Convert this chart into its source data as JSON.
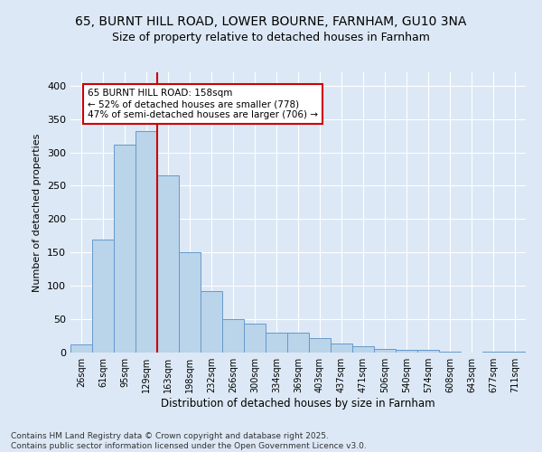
{
  "title_line1": "65, BURNT HILL ROAD, LOWER BOURNE, FARNHAM, GU10 3NA",
  "title_line2": "Size of property relative to detached houses in Farnham",
  "xlabel": "Distribution of detached houses by size in Farnham",
  "ylabel": "Number of detached properties",
  "categories": [
    "26sqm",
    "61sqm",
    "95sqm",
    "129sqm",
    "163sqm",
    "198sqm",
    "232sqm",
    "266sqm",
    "300sqm",
    "334sqm",
    "369sqm",
    "403sqm",
    "437sqm",
    "471sqm",
    "506sqm",
    "540sqm",
    "574sqm",
    "608sqm",
    "643sqm",
    "677sqm",
    "711sqm"
  ],
  "values": [
    12,
    170,
    311,
    332,
    265,
    150,
    92,
    50,
    44,
    30,
    30,
    22,
    13,
    10,
    5,
    4,
    4,
    1,
    0,
    1,
    2
  ],
  "bar_color": "#bad4ea",
  "bar_edge_color": "#6699cc",
  "vline_x": 3.5,
  "vline_color": "#cc0000",
  "annotation_text": "65 BURNT HILL ROAD: 158sqm\n← 52% of detached houses are smaller (778)\n47% of semi-detached houses are larger (706) →",
  "annotation_box_color": "#ffffff",
  "annotation_box_edge_color": "#cc0000",
  "ylim": [
    0,
    420
  ],
  "yticks": [
    0,
    50,
    100,
    150,
    200,
    250,
    300,
    350,
    400
  ],
  "footer_line1": "Contains HM Land Registry data © Crown copyright and database right 2025.",
  "footer_line2": "Contains public sector information licensed under the Open Government Licence v3.0.",
  "background_color": "#dce8f5",
  "plot_bg_color": "#dce8f5",
  "title_fontsize": 10,
  "subtitle_fontsize": 9,
  "tick_fontsize": 7,
  "ylabel_fontsize": 8,
  "xlabel_fontsize": 8.5,
  "footer_fontsize": 6.5,
  "annot_fontsize": 7.5
}
